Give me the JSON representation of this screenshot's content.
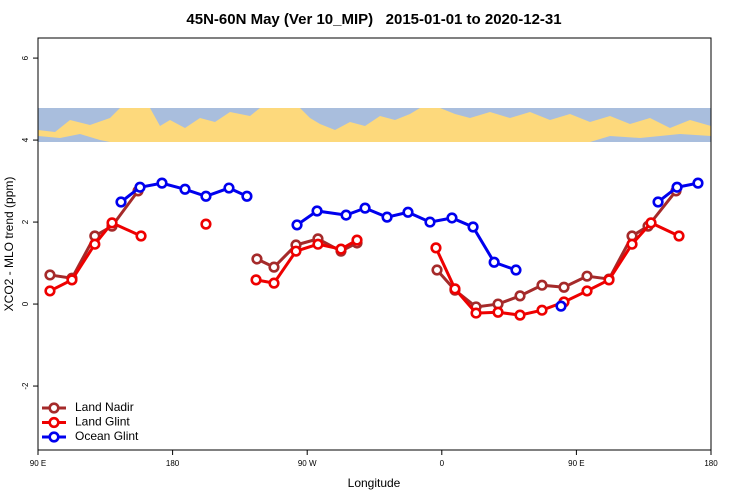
{
  "chart_data": {
    "type": "line",
    "title": "45N-60N May (Ver 10_MIP)   2015-01-01 to 2020-12-31",
    "x_label": "Longitude",
    "y_label": "XCO2 - MLO trend (ppm)",
    "xlim": [
      90,
      540
    ],
    "ylim": [
      -3.56,
      6.49
    ],
    "xticks": [
      {
        "value": 90,
        "label": "90 E"
      },
      180,
      {
        "value": 270,
        "label": "90 W"
      },
      {
        "value": 360,
        "label": "0"
      },
      {
        "value": 450,
        "label": "90 E"
      },
      {
        "value": 540,
        "label": "180"
      }
    ],
    "yticks": [
      -2,
      0,
      2,
      4,
      6
    ],
    "legend": "bottom-left",
    "series": [
      {
        "name": "Land Nadir",
        "color": "#a52a2a",
        "x": [
          98,
          112.7,
          128,
          139.5,
          156.9,
          null,
          236.4,
          247.8,
          262.5,
          277.2,
          292.6,
          303.3,
          null,
          356.8,
          368.8,
          382.9,
          397.6,
          412.3,
          427,
          441.7,
          457.1,
          471.8,
          487.2,
          497.9,
          516.6
        ],
        "values": [
          0.71,
          0.63,
          1.66,
          1.9,
          2.76,
          null,
          1.1,
          0.9,
          1.44,
          1.59,
          1.29,
          1.49,
          null,
          0.83,
          0.34,
          -0.07,
          0.0,
          0.2,
          0.46,
          0.41,
          0.68,
          0.61,
          1.66,
          1.9,
          2.76
        ]
      },
      {
        "name": "Land Glint",
        "color": "#ee0000",
        "x": [
          98,
          112.7,
          128,
          139.5,
          158.9,
          null,
          202.3,
          null,
          235.8,
          247.8,
          262.5,
          277.2,
          292.6,
          303.3,
          null,
          356.1,
          368.8,
          382.9,
          397.6,
          412.3,
          427,
          441.7,
          457.1,
          471.8,
          487.2,
          499.9,
          518.6
        ],
        "values": [
          0.32,
          0.59,
          1.46,
          1.98,
          1.66,
          null,
          1.95,
          null,
          0.59,
          0.51,
          1.29,
          1.46,
          1.34,
          1.56,
          null,
          1.37,
          0.37,
          -0.22,
          -0.2,
          -0.27,
          -0.15,
          0.05,
          0.32,
          0.59,
          1.46,
          1.98,
          1.66
        ]
      },
      {
        "name": "Ocean Glint",
        "color": "#0000ee",
        "x": [
          145.5,
          158.2,
          172.9,
          188.3,
          202.3,
          217.7,
          229.7,
          null,
          263.2,
          276.6,
          296,
          308.7,
          323.4,
          337.4,
          352.1,
          366.8,
          380.9,
          395,
          409.6,
          null,
          439.7,
          null,
          504.6,
          517.3,
          531.3
        ],
        "values": [
          2.49,
          2.85,
          2.95,
          2.8,
          2.63,
          2.83,
          2.63,
          null,
          1.93,
          2.27,
          2.17,
          2.34,
          2.12,
          2.24,
          2.0,
          2.1,
          1.88,
          1.02,
          0.83,
          null,
          -0.05,
          null,
          2.49,
          2.85,
          2.95
        ]
      }
    ]
  }
}
